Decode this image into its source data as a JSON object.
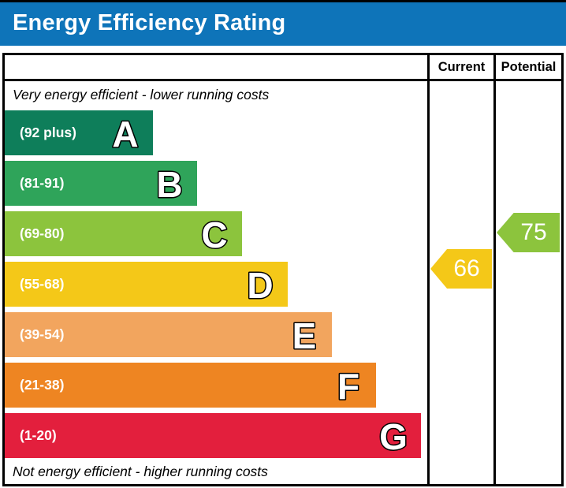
{
  "title_bar": {
    "title": "Energy Efficiency Rating",
    "background": "#0e74b9"
  },
  "table_header": {
    "current": "Current",
    "potential": "Potential"
  },
  "notes": {
    "top": "Very energy efficient - lower running costs",
    "bottom": "Not energy efficient - higher running costs"
  },
  "bands": [
    {
      "letter": "A",
      "range": "(92 plus)",
      "color": "#0e7e5a",
      "width_pct": 35.0
    },
    {
      "letter": "B",
      "range": "(81-91)",
      "color": "#2fa45a",
      "width_pct": 45.6
    },
    {
      "letter": "C",
      "range": "(69-80)",
      "color": "#8cc43d",
      "width_pct": 56.2
    },
    {
      "letter": "D",
      "range": "(55-68)",
      "color": "#f4c818",
      "width_pct": 66.9
    },
    {
      "letter": "E",
      "range": "(39-54)",
      "color": "#f2a55e",
      "width_pct": 77.5
    },
    {
      "letter": "F",
      "range": "(21-38)",
      "color": "#ee8522",
      "width_pct": 87.9
    },
    {
      "letter": "G",
      "range": "(1-20)",
      "color": "#e31f3d",
      "width_pct": 98.5
    }
  ],
  "ratings": {
    "current": {
      "value": "66",
      "band": "D",
      "band_index": 3,
      "color": "#f4c818"
    },
    "potential": {
      "value": "75",
      "band": "C",
      "band_index": 2,
      "color": "#8cc43d"
    }
  },
  "chart_data": {
    "type": "bar",
    "orientation": "horizontal",
    "title": "Energy Efficiency Rating",
    "categories": [
      "A (92 plus)",
      "B (81-91)",
      "C (69-80)",
      "D (55-68)",
      "E (39-54)",
      "F (21-38)",
      "G (1-20)"
    ],
    "bar_lengths_pct": [
      35.0,
      45.6,
      56.2,
      66.9,
      77.5,
      87.9,
      98.5
    ],
    "bar_colors": [
      "#0e7e5a",
      "#2fa45a",
      "#8cc43d",
      "#f4c818",
      "#f2a55e",
      "#ee8522",
      "#e31f3d"
    ],
    "markers": [
      {
        "label": "Current",
        "value": 66,
        "band": "D",
        "color": "#f4c818"
      },
      {
        "label": "Potential",
        "value": 75,
        "band": "C",
        "color": "#8cc43d"
      }
    ],
    "annotations": [
      "Very energy efficient - lower running costs",
      "Not energy efficient - higher running costs"
    ],
    "legend_position": "none",
    "grid": false
  }
}
